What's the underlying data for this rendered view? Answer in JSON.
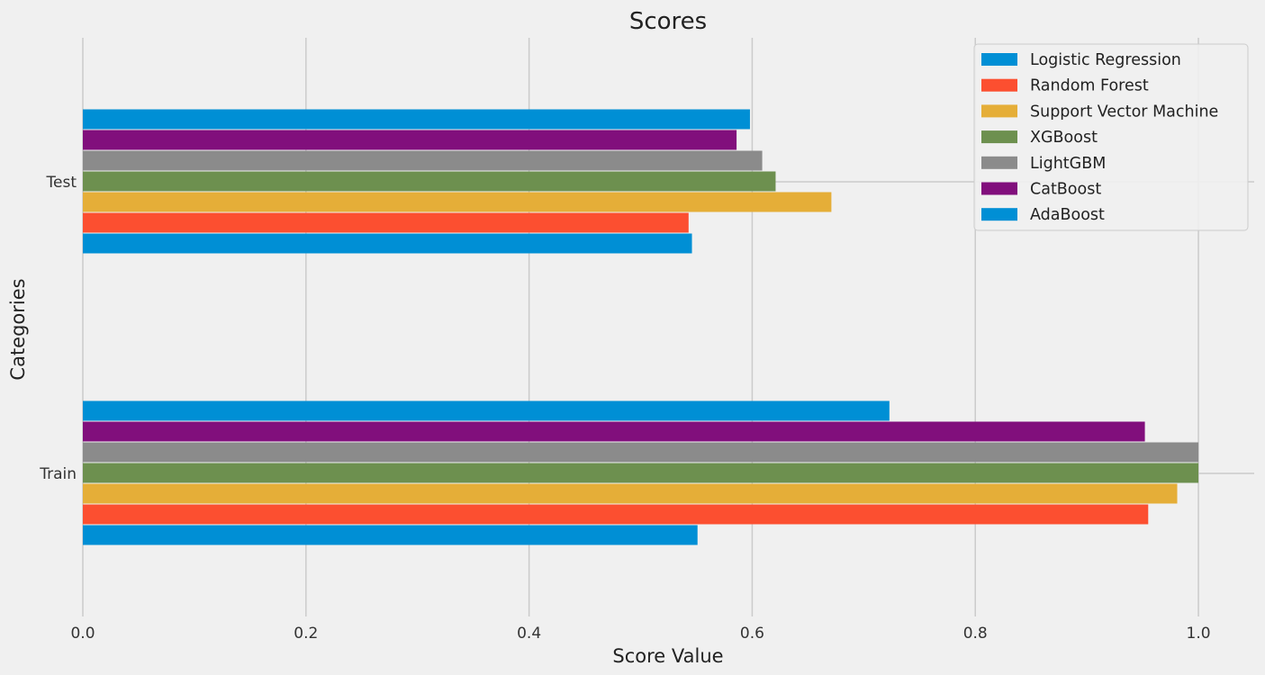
{
  "chart_data": {
    "type": "bar",
    "orientation": "horizontal",
    "title": "Scores",
    "xlabel": "Score Value",
    "ylabel": "Categories",
    "categories": [
      "Train",
      "Test"
    ],
    "xlim": [
      0.0,
      1.05
    ],
    "xticks": [
      0.0,
      0.2,
      0.4,
      0.6,
      0.8,
      1.0
    ],
    "xtick_labels": [
      "0.0",
      "0.2",
      "0.4",
      "0.6",
      "0.8",
      "1.0"
    ],
    "grid": true,
    "legend_position": "top-right",
    "series": [
      {
        "name": "Logistic Regression",
        "color": "#008fd5",
        "values": [
          0.551,
          0.546
        ]
      },
      {
        "name": "Random Forest",
        "color": "#fc4f30",
        "values": [
          0.955,
          0.543
        ]
      },
      {
        "name": "Support Vector Machine",
        "color": "#e5ae38",
        "values": [
          0.981,
          0.671
        ]
      },
      {
        "name": "XGBoost",
        "color": "#6d904f",
        "values": [
          1.0,
          0.621
        ]
      },
      {
        "name": "LightGBM",
        "color": "#8b8b8b",
        "values": [
          1.0,
          0.609
        ]
      },
      {
        "name": "CatBoost",
        "color": "#810f7c",
        "values": [
          0.952,
          0.586
        ]
      },
      {
        "name": "AdaBoost",
        "color": "#008fd5",
        "values": [
          0.723,
          0.598
        ]
      }
    ]
  }
}
